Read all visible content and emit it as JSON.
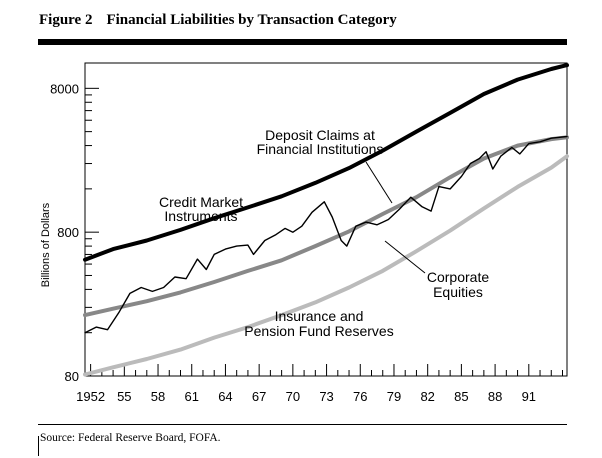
{
  "figure": {
    "number": "Figure 2",
    "title": "Financial Liabilities by Transaction Category",
    "source": "Source: Federal Reserve Board, FOFA."
  },
  "chart_data": {
    "type": "line",
    "ylabel": "Billions of Dollars",
    "xlabel": "",
    "y_scale": "log",
    "ylim": [
      80,
      12000
    ],
    "xlim": [
      1951.5,
      1994.4
    ],
    "y_ticks": [
      80,
      800,
      8000
    ],
    "y_tick_labels": [
      "80",
      "800",
      "8000"
    ],
    "x_ticks": [
      1952,
      1955,
      1958,
      1961,
      1964,
      1967,
      1970,
      1973,
      1976,
      1979,
      1982,
      1985,
      1988,
      1991
    ],
    "x_tick_labels": [
      "1952",
      "55",
      "58",
      "61",
      "64",
      "67",
      "70",
      "73",
      "76",
      "79",
      "82",
      "85",
      "88",
      "91"
    ],
    "grid": false,
    "legend": "none",
    "series": [
      {
        "key": "credit",
        "color": "#000000",
        "x": [
          1951.5,
          1954,
          1957,
          1960,
          1963,
          1966,
          1969,
          1972,
          1975,
          1978,
          1981,
          1984,
          1987,
          1990,
          1993,
          1994.4
        ],
        "y": [
          515,
          610,
          700,
          830,
          1000,
          1190,
          1420,
          1760,
          2230,
          2950,
          4000,
          5400,
          7300,
          9200,
          10900,
          11600
        ]
      },
      {
        "key": "deposit",
        "color": "#888888",
        "x": [
          1951.5,
          1954,
          1957,
          1960,
          1963,
          1966,
          1969,
          1972,
          1975,
          1978,
          1981,
          1984,
          1987,
          1990,
          1993,
          1994.4
        ],
        "y": [
          212,
          235,
          265,
          305,
          360,
          430,
          510,
          640,
          810,
          1070,
          1400,
          1930,
          2600,
          3200,
          3550,
          3650
        ]
      },
      {
        "key": "equities",
        "color": "#000000",
        "x": [
          1951.5,
          1952.5,
          1953.5,
          1954.5,
          1955.5,
          1956.5,
          1957.5,
          1958.5,
          1959.5,
          1960.5,
          1961.5,
          1962.3,
          1963,
          1964,
          1965,
          1966,
          1966.5,
          1967.5,
          1968.5,
          1969.3,
          1970,
          1970.8,
          1971.7,
          1972.8,
          1973.5,
          1974.3,
          1974.8,
          1975.6,
          1976.5,
          1977.5,
          1978.5,
          1979.5,
          1980.5,
          1981.5,
          1982.3,
          1983,
          1984,
          1985,
          1985.8,
          1986.6,
          1987.2,
          1987.8,
          1988.5,
          1989.5,
          1990.2,
          1991,
          1992,
          1993,
          1994.4
        ],
        "y": [
          160,
          175,
          168,
          220,
          300,
          330,
          310,
          330,
          390,
          380,
          520,
          440,
          560,
          610,
          640,
          650,
          560,
          700,
          770,
          850,
          800,
          880,
          1100,
          1300,
          1020,
          700,
          640,
          880,
          940,
          900,
          980,
          1160,
          1400,
          1200,
          1120,
          1660,
          1600,
          1950,
          2400,
          2600,
          2900,
          2200,
          2700,
          3100,
          2800,
          3300,
          3400,
          3600,
          3700
        ]
      },
      {
        "key": "insurance",
        "color": "#bbbbbb",
        "x": [
          1951.5,
          1954,
          1957,
          1960,
          1963,
          1966,
          1969,
          1972,
          1975,
          1978,
          1981,
          1984,
          1987,
          1990,
          1993,
          1994.4
        ],
        "y": [
          82,
          92,
          105,
          122,
          148,
          175,
          212,
          260,
          330,
          430,
          590,
          820,
          1170,
          1650,
          2250,
          2700
        ]
      }
    ],
    "annotations": [
      {
        "series": "deposit",
        "lines": [
          "Deposit Claims at",
          "Financial Institutions"
        ]
      },
      {
        "series": "credit",
        "lines": [
          "Credit Market",
          "Instruments"
        ]
      },
      {
        "series": "equities",
        "lines": [
          "Corporate",
          "Equities"
        ]
      },
      {
        "series": "insurance",
        "lines": [
          "Insurance and",
          "Pension Fund Reserves"
        ]
      }
    ]
  }
}
